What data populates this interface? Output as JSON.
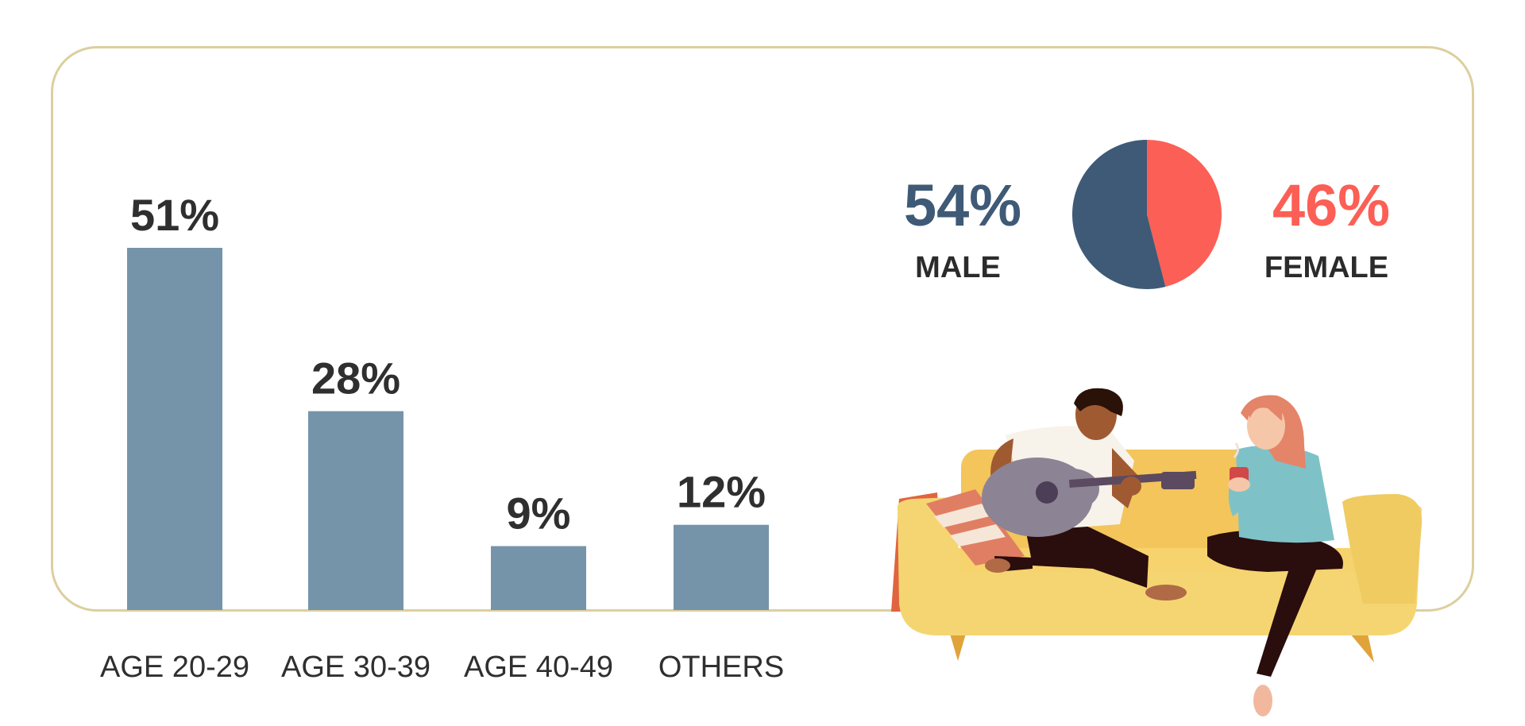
{
  "chart_data": [
    {
      "type": "bar",
      "categories": [
        "AGE 20-29",
        "AGE 30-39",
        "AGE 40-49",
        "OTHERS"
      ],
      "values": [
        51,
        28,
        9,
        12
      ],
      "value_labels": [
        "51%",
        "28%",
        "9%",
        "12%"
      ],
      "ylim": [
        0,
        51
      ],
      "grid": false,
      "colors": {
        "bar": "#7594aa"
      }
    },
    {
      "type": "pie",
      "slices": [
        {
          "label": "MALE",
          "value": 54,
          "value_label": "54%",
          "color": "#3e5a76"
        },
        {
          "label": "FEMALE",
          "value": 46,
          "value_label": "46%",
          "color": "#fc5f55"
        }
      ]
    }
  ],
  "colors": {
    "frame": "#dccf9e",
    "text": "#2f2f2f"
  },
  "illustration": "couple-on-sofa-with-guitar"
}
